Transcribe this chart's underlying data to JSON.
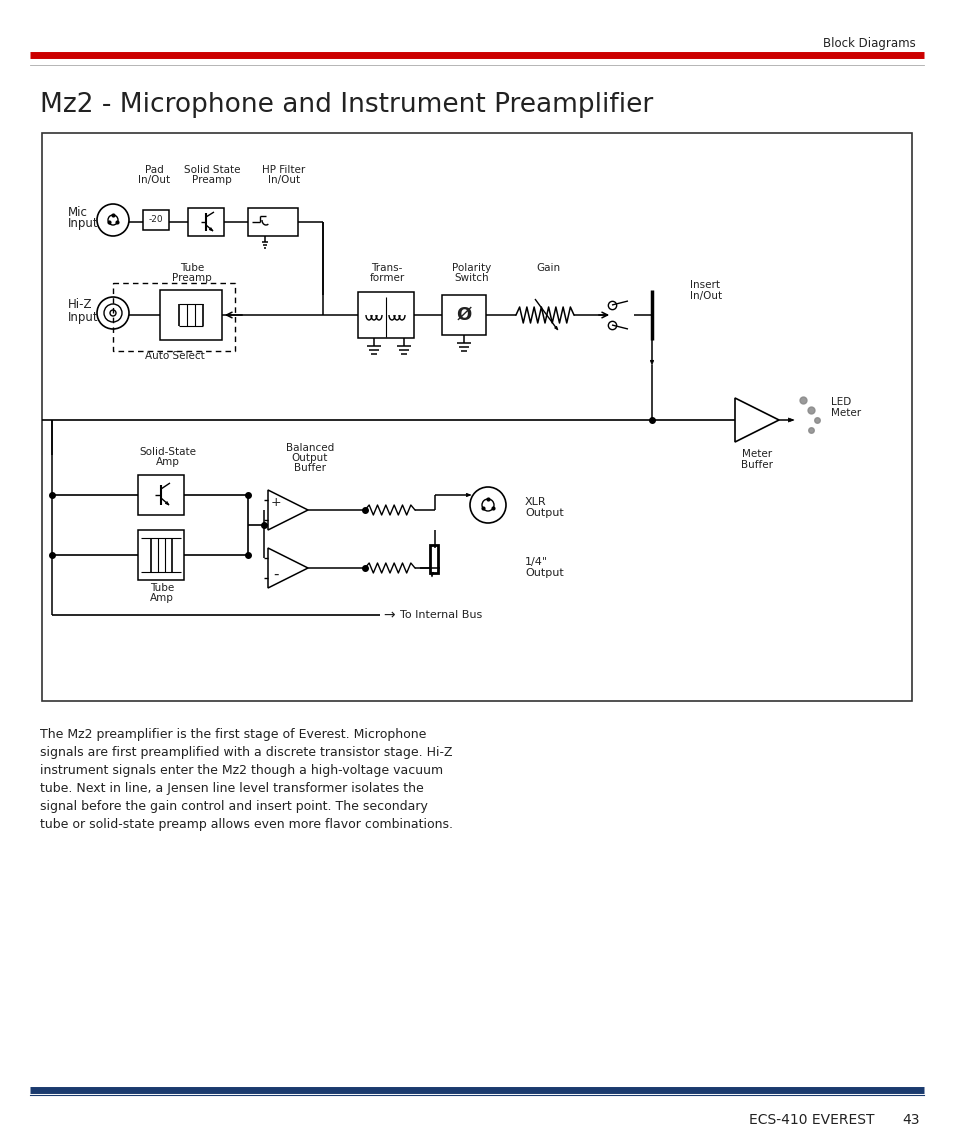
{
  "page_title": "Mz2 - Microphone and Instrument Preamplifier",
  "header_label": "Block Diagrams",
  "footer_label": "ECS-410 EVEREST",
  "page_number": "43",
  "header_line_color": "#cc0000",
  "footer_line_color": "#1a3a6e",
  "body_text": "The Mz2 preamplifier is the first stage of Everest. Microphone\nsignals are first preamplified with a discrete transistor stage. Hi-Z\ninstrument signals enter the Mz2 though a high-voltage vacuum\ntube. Next in line, a Jensen line level transformer isolates the\nsignal before the gain control and insert point. The secondary\ntube or solid-state preamp allows even more flavor combinations.",
  "bg_color": "#ffffff",
  "text_color": "#222222",
  "diagram_border_color": "#333333",
  "component_color": "#000000",
  "line_color": "#000000"
}
